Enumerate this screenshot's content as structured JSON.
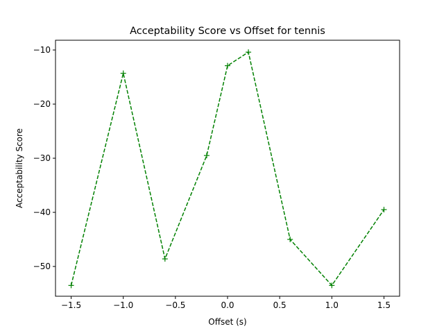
{
  "chart_data": {
    "type": "line",
    "title": "Acceptability Score vs Offset for tennis",
    "xlabel": "Offset (s)",
    "ylabel": "Acceptability Score",
    "xlim": [
      -1.65,
      1.65
    ],
    "ylim": [
      -55.5,
      -8.2
    ],
    "x_ticks": [
      -1.5,
      -1.0,
      -0.5,
      0.0,
      0.5,
      1.0,
      1.5
    ],
    "x_tick_labels": [
      "−1.5",
      "−1.0",
      "−0.5",
      "0.0",
      "0.5",
      "1.0",
      "1.5"
    ],
    "y_ticks": [
      -50,
      -40,
      -30,
      -20,
      -10
    ],
    "y_tick_labels": [
      "−50",
      "−40",
      "−30",
      "−20",
      "−10"
    ],
    "grid": false,
    "series": [
      {
        "color": "#008000",
        "line_style": "dashed",
        "marker": "plus",
        "x": [
          -1.5,
          -1.0,
          -0.6,
          -0.2,
          0.0,
          0.2,
          0.6,
          1.0,
          1.5
        ],
        "y": [
          -53.5,
          -14.3,
          -48.6,
          -29.5,
          -12.9,
          -10.4,
          -45.0,
          -53.5,
          -39.5
        ]
      }
    ]
  }
}
